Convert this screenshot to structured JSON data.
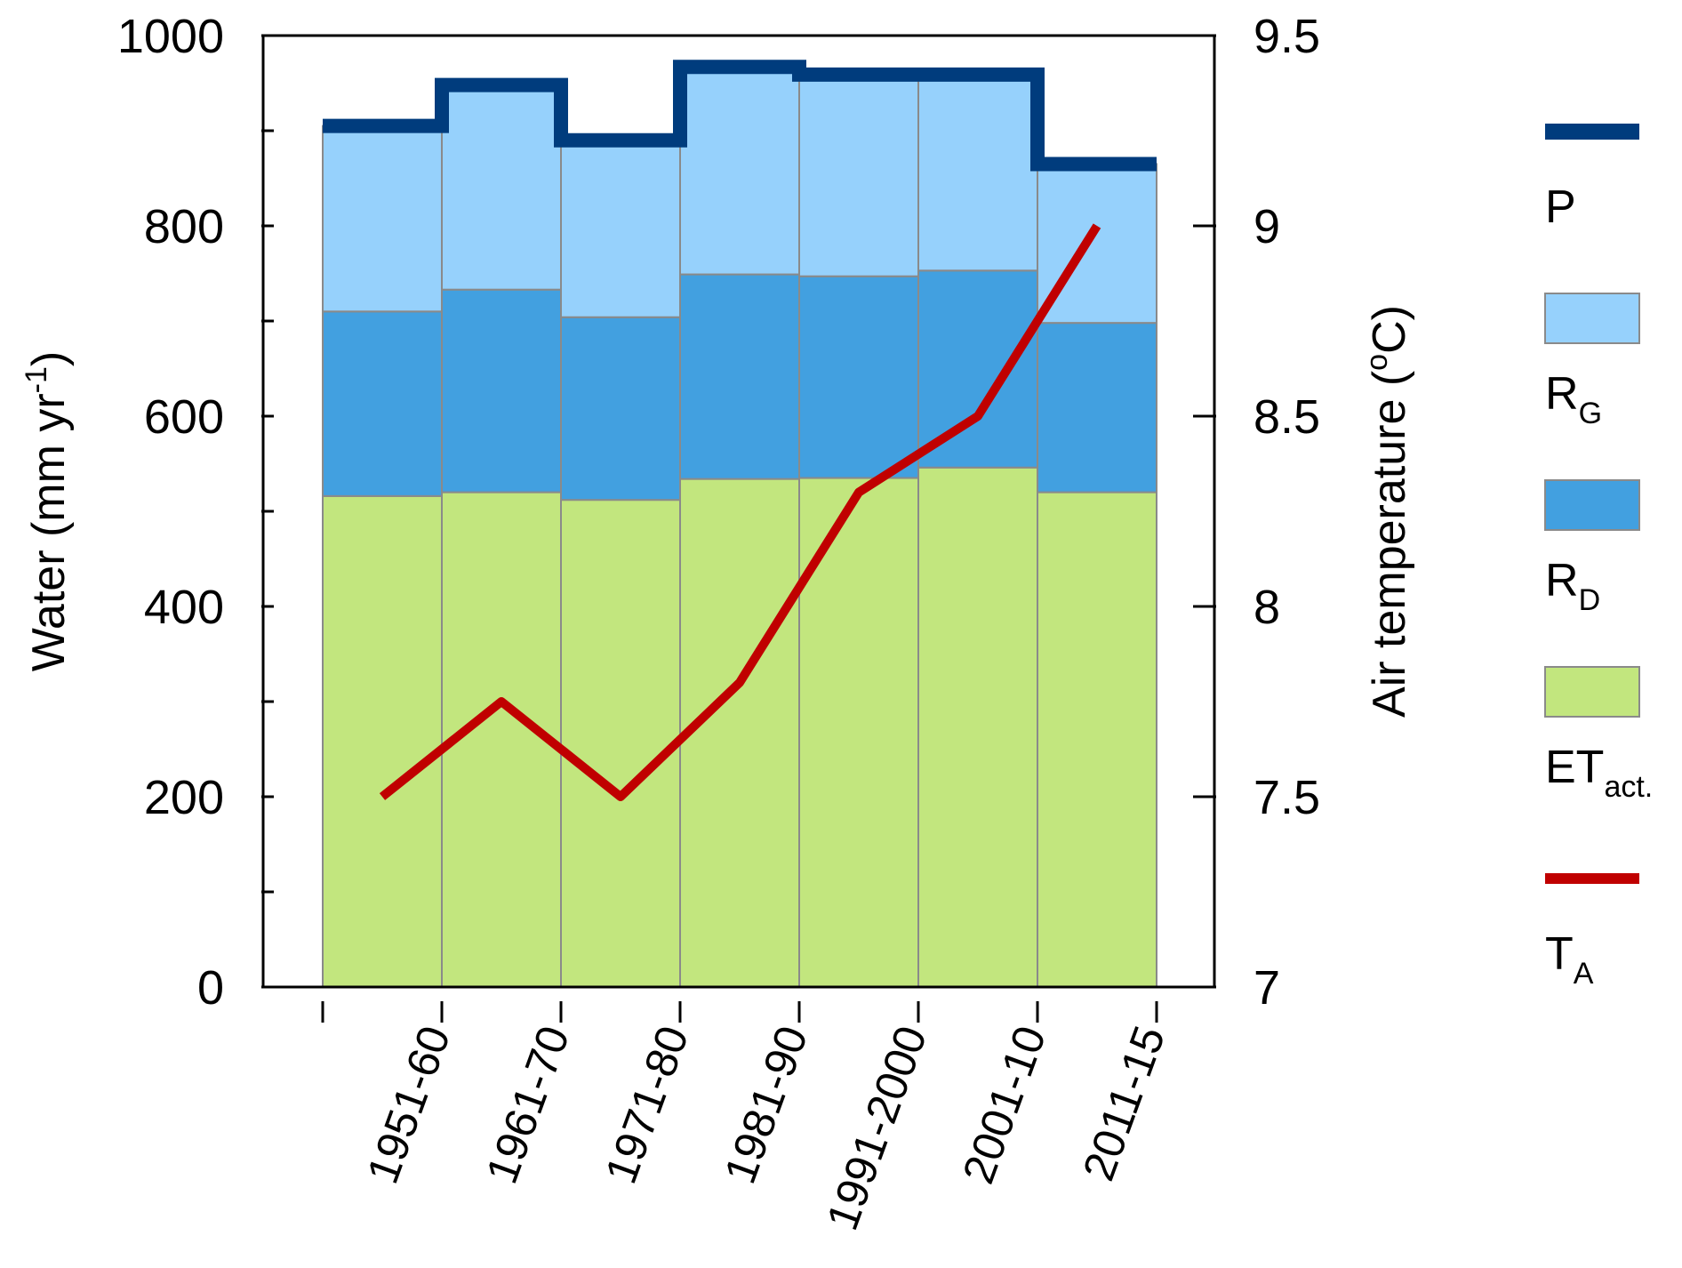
{
  "chart_data": {
    "type": "bar",
    "subtype": "stacked-step",
    "categories": [
      "1951-60",
      "1961-70",
      "1971-80",
      "1981-90",
      "1991-2000",
      "2001-10",
      "2011-15"
    ],
    "series": [
      {
        "name": "ETact.",
        "label_main": "ET",
        "label_sub": "act.",
        "kind": "stack",
        "color": "#c2e67e",
        "values": [
          516,
          520,
          512,
          534,
          535,
          546,
          520
        ]
      },
      {
        "name": "RD",
        "label_main": "R",
        "label_sub": "D",
        "kind": "stack",
        "color": "#42a0e0",
        "values": [
          194,
          213,
          192,
          215,
          212,
          207,
          178
        ]
      },
      {
        "name": "RG",
        "label_main": "R",
        "label_sub": "G",
        "kind": "stack",
        "color": "#96d1fc",
        "values": [
          195,
          215,
          186,
          218,
          212,
          206,
          167
        ]
      },
      {
        "name": "P",
        "label_main": "P",
        "label_sub": "",
        "kind": "step",
        "color": "#003c7d",
        "values": [
          905,
          948,
          890,
          967,
          959,
          959,
          865
        ]
      },
      {
        "name": "TA",
        "label_main": "T",
        "label_sub": "A",
        "kind": "line",
        "axis": "right",
        "color": "#c00000",
        "values": [
          7.5,
          7.75,
          7.5,
          7.8,
          8.3,
          8.5,
          9.0
        ]
      }
    ],
    "left_axis": {
      "title": "Water (mm yr",
      "title_sup": "-1",
      "title_end": ")",
      "ylim": [
        0,
        1000
      ],
      "ticks": [
        "0",
        "200",
        "400",
        "600",
        "800",
        "1000"
      ]
    },
    "right_axis": {
      "title": "Air temperature (",
      "title_sup": "o",
      "title_end": "C)",
      "ylim": [
        7,
        9.5
      ],
      "ticks": [
        "7",
        "7.5",
        "8",
        "8.5",
        "9",
        "9.5"
      ]
    },
    "legend_position": "right",
    "grid": false
  }
}
